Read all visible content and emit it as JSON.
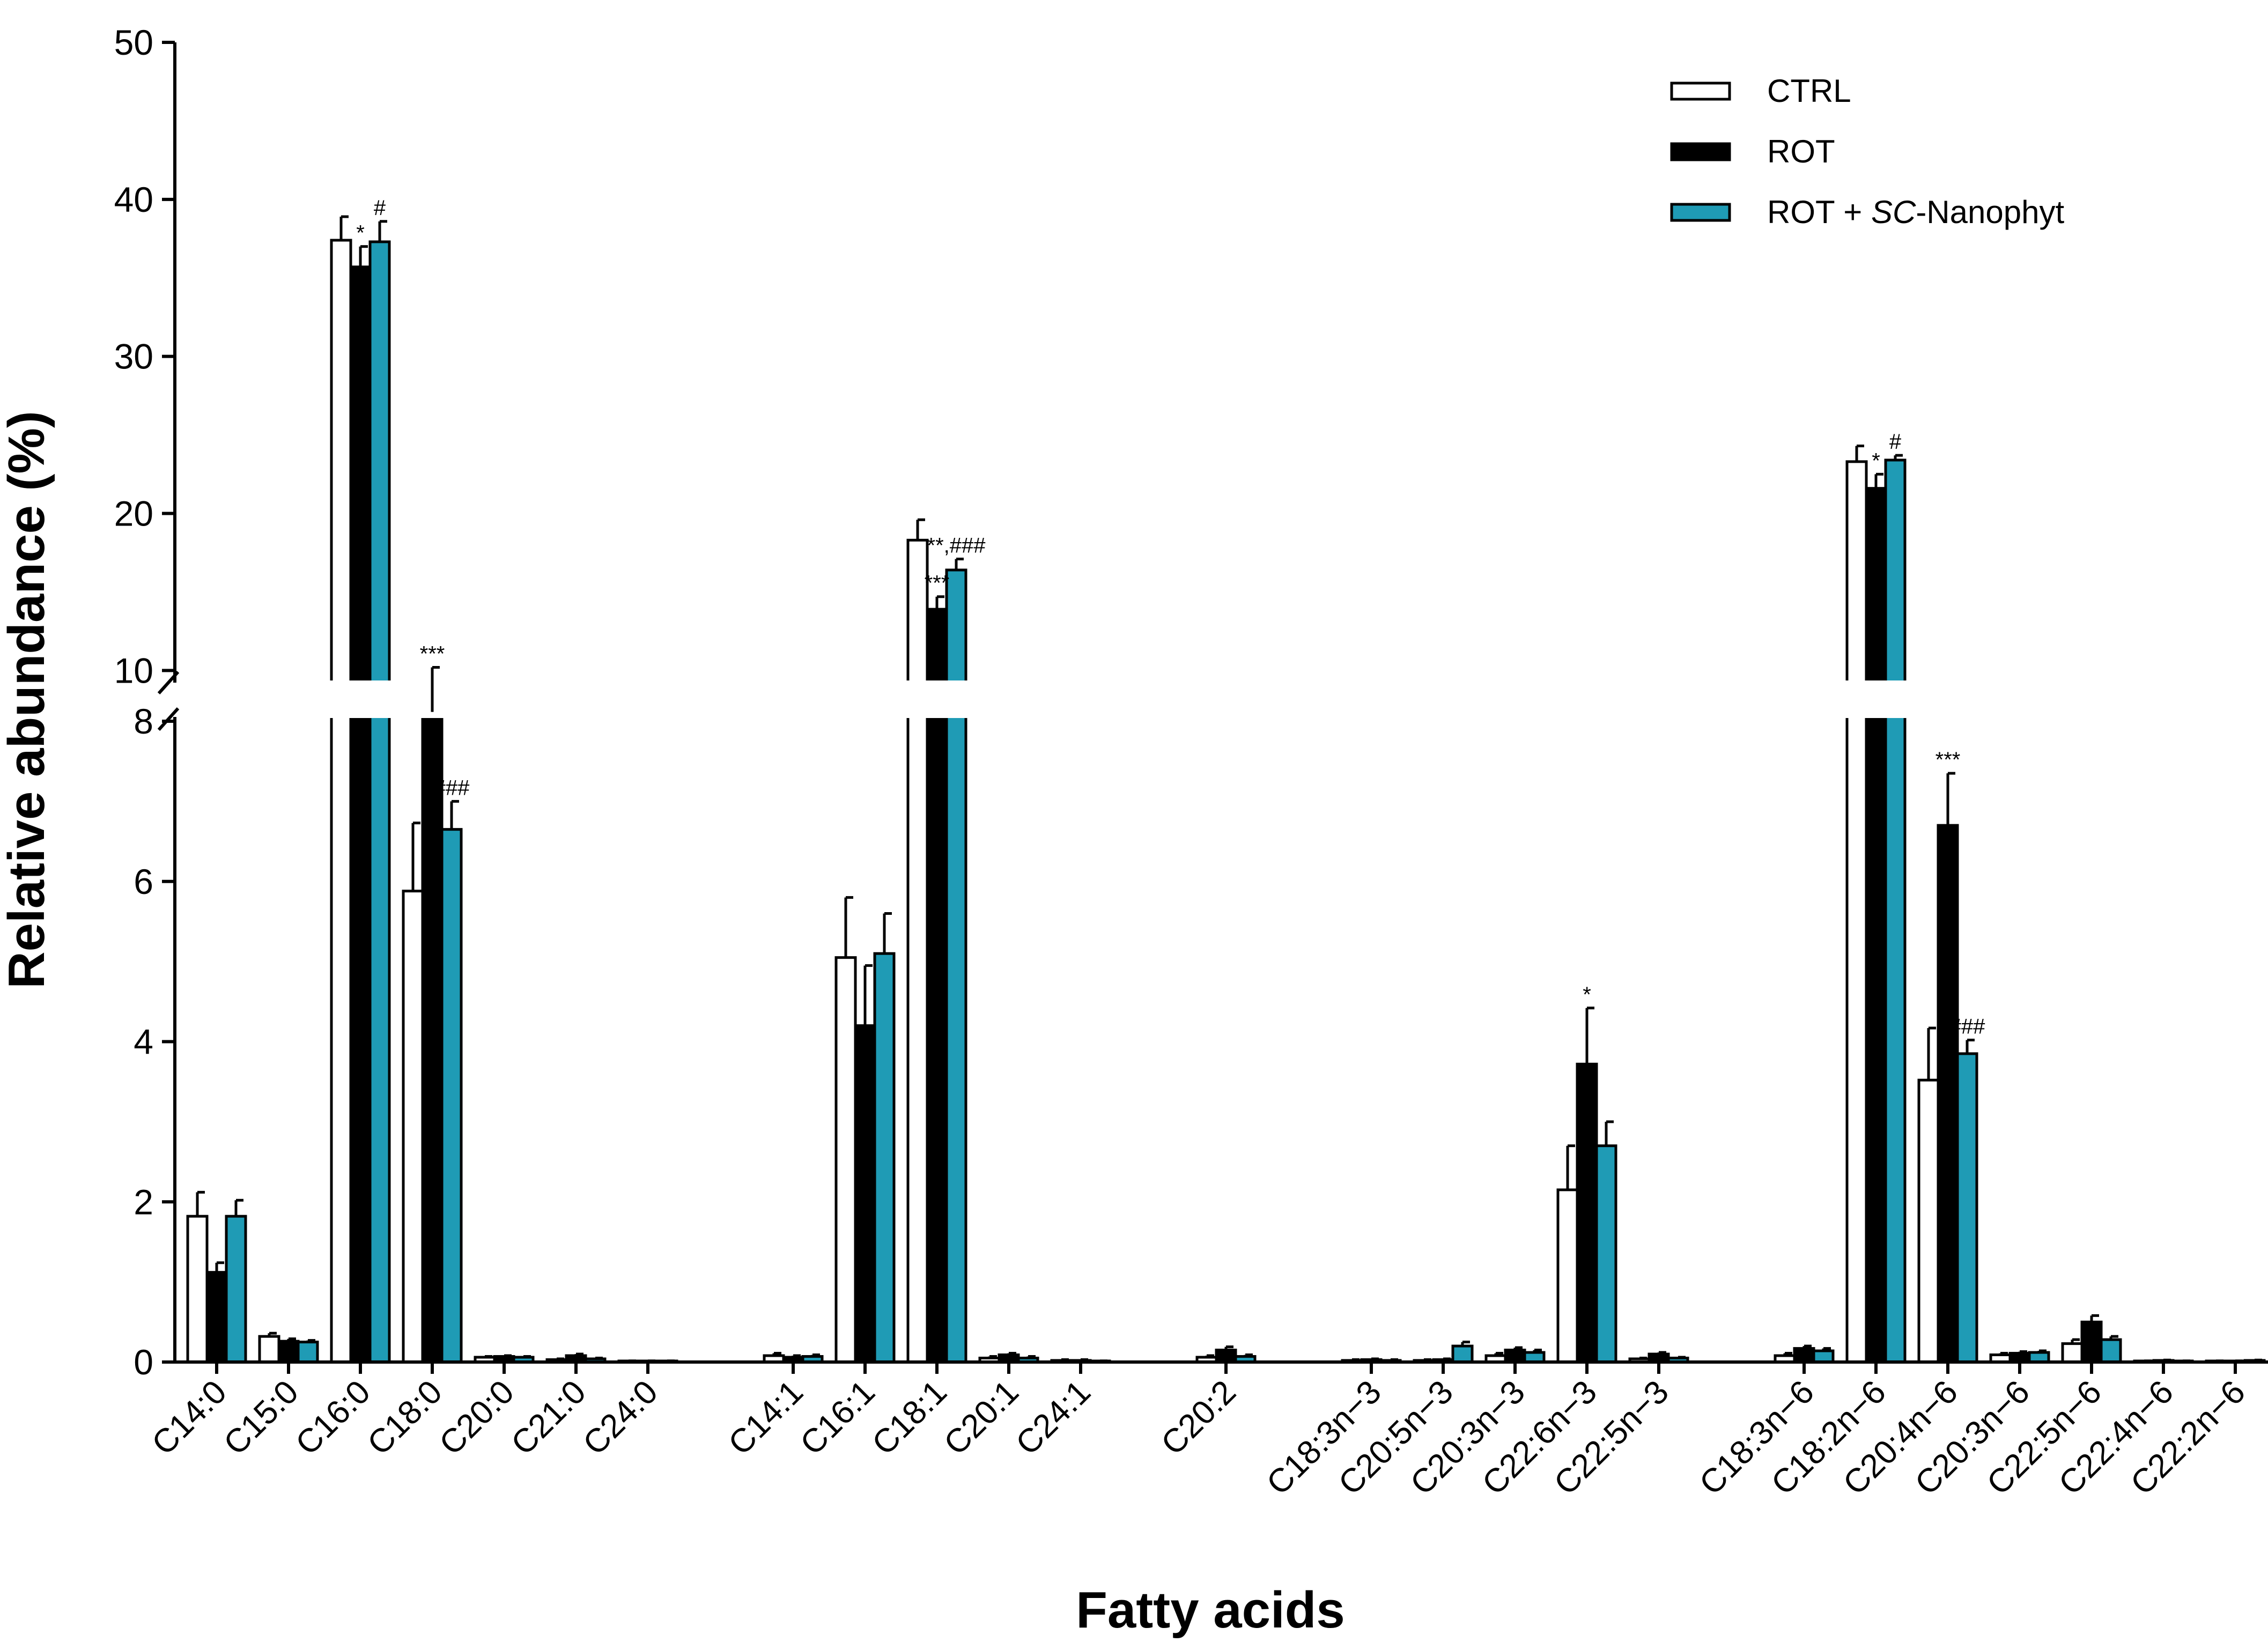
{
  "chart_data": {
    "type": "bar",
    "title": "",
    "xlabel": "Fatty acids",
    "ylabel": "Relative abundance (%)",
    "ylim": [
      0,
      50
    ],
    "y_axis_break": {
      "from": 8,
      "to": 9.5
    },
    "yticks": [
      "0",
      "2",
      "4",
      "6",
      "8",
      "10",
      "20",
      "30",
      "40",
      "50"
    ],
    "legend": {
      "position": "top-right",
      "entries": [
        {
          "name": "CTRL",
          "prefix": "CTRL",
          "italic": "",
          "suffix": ""
        },
        {
          "name": "ROT",
          "prefix": "ROT",
          "italic": "",
          "suffix": ""
        },
        {
          "name": "ROT + SC-Nanophyt",
          "prefix": "ROT + ",
          "italic": "SC",
          "suffix": "-Nanophyt"
        }
      ]
    },
    "categories": [
      "C14:0",
      "C15:0",
      "C16:0",
      "C18:0",
      "C20:0",
      "C21:0",
      "C24:0",
      "C14:1",
      "C16:1",
      "C18:1",
      "C20:1",
      "C24:1",
      "C20:2",
      "C18:3n−3",
      "C20:5n−3",
      "C20:3n−3",
      "C22:6n−3",
      "C22:5n−3",
      "C18:3n−6",
      "C18:2n−6",
      "C20:4n−6",
      "C20:3n−6",
      "C22:5n−6",
      "C22:4n−6",
      "C22:2n−6"
    ],
    "groups": [
      7,
      5,
      1,
      5,
      7
    ],
    "series": [
      {
        "name": "CTRL",
        "color": "#ffffff",
        "values": [
          1.82,
          0.32,
          37.4,
          5.88,
          0.06,
          0.03,
          0.01,
          0.08,
          5.05,
          18.3,
          0.05,
          0.02,
          0.06,
          0.02,
          0.02,
          0.08,
          2.15,
          0.04,
          0.08,
          23.3,
          3.52,
          0.09,
          0.23,
          0.01,
          0.01
        ],
        "errors": [
          0.3,
          0.04,
          1.5,
          0.85,
          0.01,
          0.01,
          0.005,
          0.03,
          0.75,
          1.3,
          0.02,
          0.01,
          0.02,
          0.01,
          0.01,
          0.03,
          0.55,
          0.01,
          0.03,
          1.0,
          0.65,
          0.02,
          0.05,
          0.005,
          0.005
        ]
      },
      {
        "name": "ROT",
        "color": "#000000",
        "values": [
          1.12,
          0.26,
          35.7,
          9.3,
          0.07,
          0.08,
          0.01,
          0.06,
          4.2,
          13.9,
          0.09,
          0.02,
          0.15,
          0.03,
          0.03,
          0.15,
          3.72,
          0.1,
          0.17,
          21.6,
          6.7,
          0.11,
          0.5,
          0.02,
          0.01
        ],
        "errors": [
          0.12,
          0.03,
          1.3,
          0.9,
          0.01,
          0.02,
          0.005,
          0.02,
          0.75,
          0.8,
          0.02,
          0.01,
          0.04,
          0.01,
          0.01,
          0.03,
          0.7,
          0.02,
          0.03,
          0.9,
          0.65,
          0.02,
          0.08,
          0.005,
          0.005
        ]
      },
      {
        "name": "ROT + SC-Nanophyt",
        "color": "#1f9bb5",
        "values": [
          1.82,
          0.25,
          37.3,
          6.65,
          0.06,
          0.04,
          0.01,
          0.07,
          5.1,
          16.4,
          0.05,
          0.01,
          0.07,
          0.02,
          0.2,
          0.12,
          2.7,
          0.05,
          0.14,
          23.4,
          3.85,
          0.12,
          0.28,
          0.01,
          0.02
        ],
        "errors": [
          0.2,
          0.02,
          1.3,
          0.35,
          0.01,
          0.01,
          0.005,
          0.02,
          0.5,
          0.7,
          0.02,
          0.005,
          0.02,
          0.01,
          0.05,
          0.03,
          0.3,
          0.01,
          0.03,
          0.3,
          0.17,
          0.02,
          0.04,
          0.005,
          0.005
        ]
      }
    ],
    "annotations": [
      {
        "category": 2,
        "series": 1,
        "text": "*"
      },
      {
        "category": 2,
        "series": 2,
        "text": "#"
      },
      {
        "category": 3,
        "series": 1,
        "text": "***"
      },
      {
        "category": 3,
        "series": 2,
        "text": "###"
      },
      {
        "category": 9,
        "series": 1,
        "text": "***"
      },
      {
        "category": 9,
        "series": 2,
        "text": "**,###"
      },
      {
        "category": 16,
        "series": 1,
        "text": "*"
      },
      {
        "category": 19,
        "series": 1,
        "text": "*"
      },
      {
        "category": 19,
        "series": 2,
        "text": "#"
      },
      {
        "category": 20,
        "series": 1,
        "text": "***"
      },
      {
        "category": 20,
        "series": 2,
        "text": "###"
      }
    ]
  }
}
